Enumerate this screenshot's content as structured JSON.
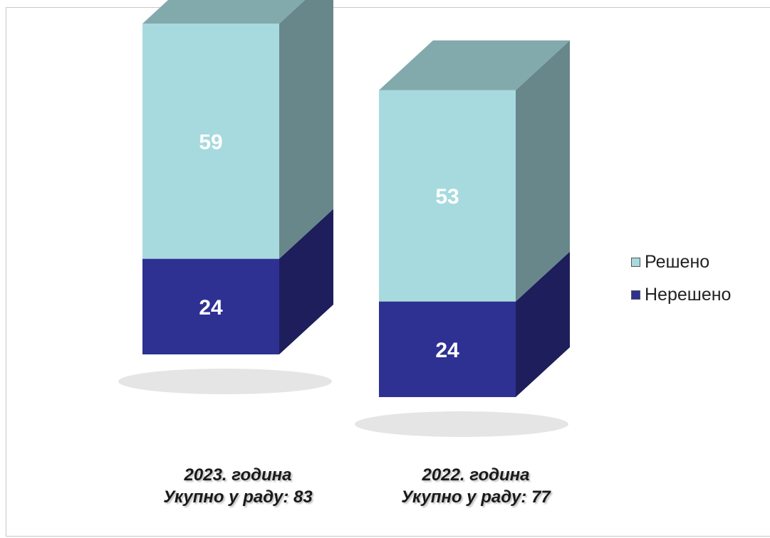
{
  "chart_data": {
    "type": "bar",
    "stacked": true,
    "categories": [
      "2023. година",
      "2022. година"
    ],
    "category_subtitles": [
      "Укупно у раду:  83",
      "Укупно у раду:  77"
    ],
    "series": [
      {
        "name": "Нерешено",
        "values": [
          24,
          24
        ],
        "color": "#2e3192",
        "label_color": "#ffffff"
      },
      {
        "name": "Решено",
        "values": [
          59,
          53
        ],
        "color": "#a7dade",
        "label_color": "#ffffff"
      }
    ],
    "title": "",
    "xlabel": "",
    "ylabel": "",
    "ylim": [
      0,
      85
    ],
    "grid": false,
    "legend": "right",
    "style": "3d-column"
  }
}
